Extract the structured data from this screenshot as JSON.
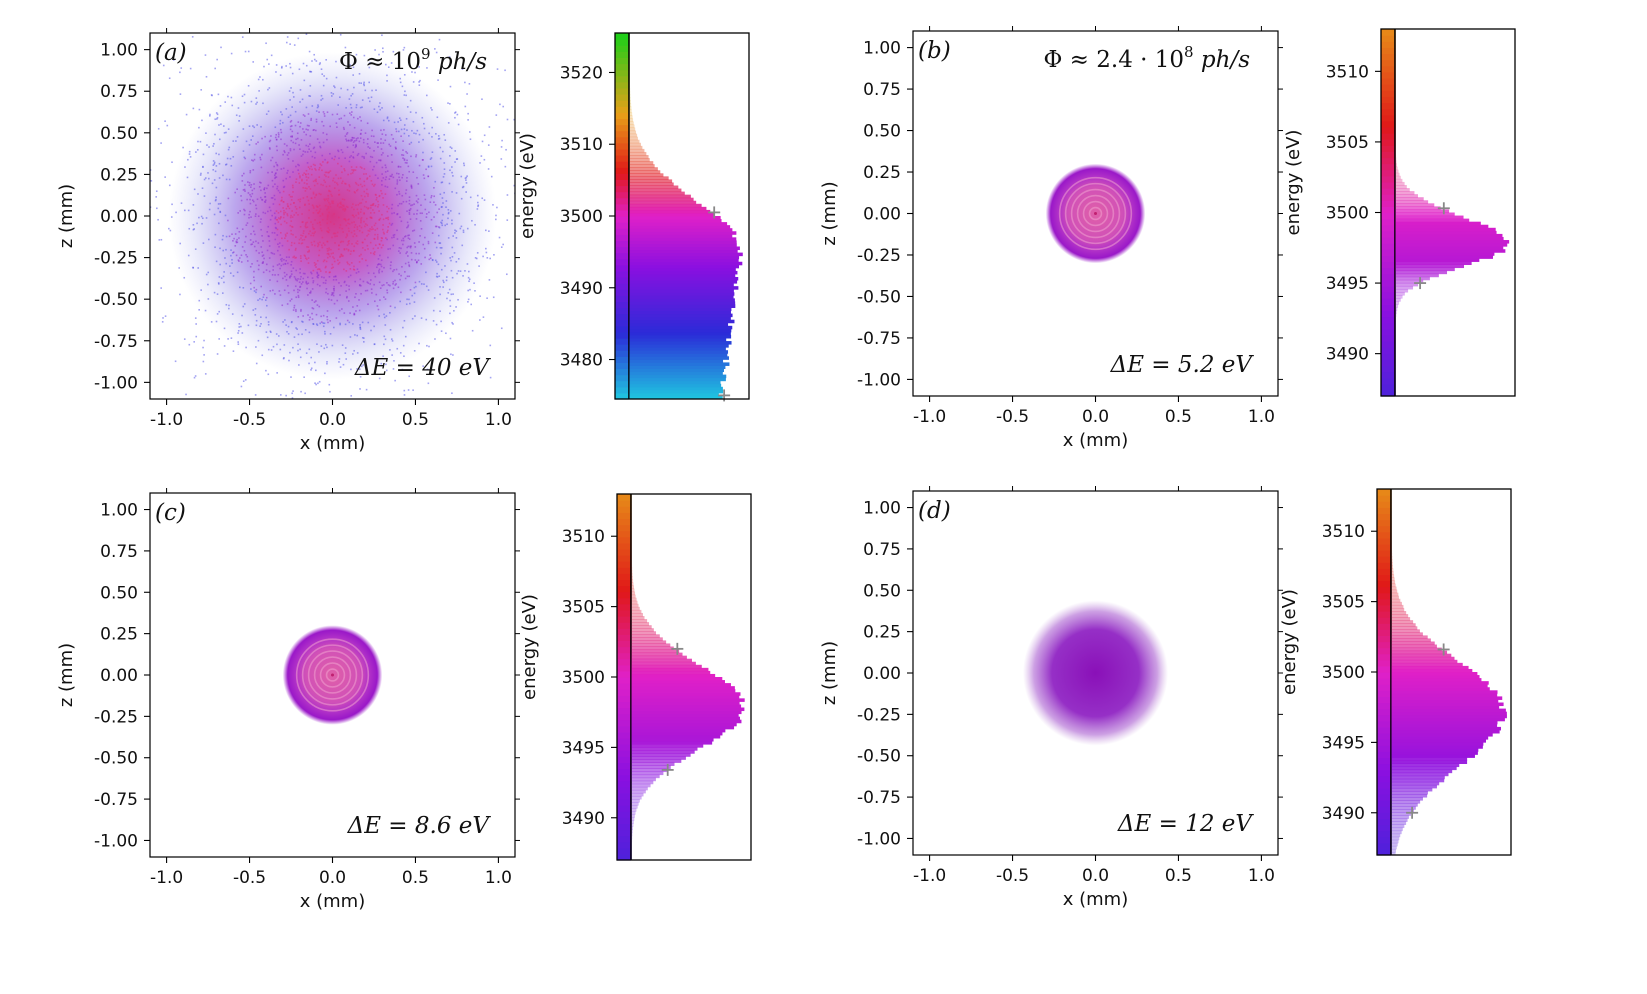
{
  "colors": {
    "cyan": "#1fc8e0",
    "blue": "#2b2bd8",
    "violet": "#8a10e0",
    "magenta": "#e020c8",
    "red": "#e01818",
    "orange": "#e8a018",
    "green": "#18d018",
    "marker": "#888888"
  },
  "chart_data": [
    {
      "panel": "a",
      "type": "heatmap",
      "label": "(a)",
      "flux": {
        "prefix": "Φ ≈ ",
        "mantissa": "",
        "base": "10",
        "exp": "9",
        "unit": "ph/s"
      },
      "delta_e": "ΔE = 40 eV",
      "spot": {
        "style": "diffuse",
        "sigma_mm": 0.38,
        "dots": true
      },
      "spot_ticks": {
        "x": [
          -1.0,
          -0.5,
          0.0,
          0.5,
          1.0
        ],
        "x_labels": [
          "-1.0",
          "-0.5",
          "0.0",
          "0.5",
          "1.0"
        ],
        "z": [
          1.0,
          0.75,
          0.5,
          0.25,
          0.0,
          -0.25,
          -0.5,
          -0.75,
          -1.0
        ],
        "z_labels": [
          "1.00",
          "0.75",
          "0.50",
          "0.25",
          "0.00",
          "-0.25",
          "-0.50",
          "-0.75",
          "-1.00"
        ]
      },
      "xlim": [
        -1.1,
        1.1
      ],
      "ylim": [
        -1.1,
        1.1
      ],
      "xlabel": "x (mm)",
      "ylabel": "z (mm)",
      "histogram": {
        "ylabel": "energy (eV)",
        "ylim": [
          3474.5,
          3525.5
        ],
        "ticks": [
          3480,
          3490,
          3500,
          3510,
          3520
        ],
        "tick_labels": [
          "3480",
          "3490",
          "3500",
          "3510",
          "3520"
        ],
        "colorbar_range": [
          3474.5,
          3525.5
        ],
        "dist": {
          "mu": 3485,
          "sigma_lo": 40,
          "sigma_hi": 7,
          "plateau_hi": 3495
        },
        "markers": [
          3500.5,
          3475
        ]
      }
    },
    {
      "panel": "b",
      "type": "heatmap",
      "label": "(b)",
      "flux": {
        "prefix": "Φ ≈ ",
        "mantissa": "2.4 · ",
        "base": "10",
        "exp": "8",
        "unit": "ph/s"
      },
      "delta_e": "ΔE = 5.2 eV",
      "spot": {
        "style": "rings",
        "radius_mm": 0.3,
        "dots": false
      },
      "spot_ticks": {
        "x": [
          -1.0,
          -0.5,
          0.0,
          0.5,
          1.0
        ],
        "x_labels": [
          "-1.0",
          "-0.5",
          "0.0",
          "0.5",
          "1.0"
        ],
        "z": [
          1.0,
          0.75,
          0.5,
          0.25,
          0.0,
          -0.25,
          -0.5,
          -0.75,
          -1.0
        ],
        "z_labels": [
          "1.00",
          "0.75",
          "0.50",
          "0.25",
          "0.00",
          "-0.25",
          "-0.50",
          "-0.75",
          "-1.00"
        ]
      },
      "xlim": [
        -1.1,
        1.1
      ],
      "ylim": [
        -1.1,
        1.1
      ],
      "xlabel": "x (mm)",
      "ylabel": "z (mm)",
      "histogram": {
        "ylabel": "energy (eV)",
        "ylim": [
          3487,
          3513
        ],
        "ticks": [
          3490,
          3495,
          3500,
          3505,
          3510
        ],
        "tick_labels": [
          "3490",
          "3495",
          "3500",
          "3505",
          "3510"
        ],
        "colorbar_range": [
          3474.5,
          3525.5
        ],
        "dist": {
          "mu": 3497.8,
          "sigma_lo": 1.6,
          "sigma_hi": 1.9
        },
        "markers": [
          3500.3,
          3495.0
        ]
      }
    },
    {
      "panel": "c",
      "type": "heatmap",
      "label": "(c)",
      "flux": null,
      "delta_e": "ΔE = 8.6 eV",
      "spot": {
        "style": "rings",
        "radius_mm": 0.3,
        "dots": false
      },
      "spot_ticks": {
        "x": [
          -1.0,
          -0.5,
          0.0,
          0.5,
          1.0
        ],
        "x_labels": [
          "-1.0",
          "-0.5",
          "0.0",
          "0.5",
          "1.0"
        ],
        "z": [
          1.0,
          0.75,
          0.5,
          0.25,
          0.0,
          -0.25,
          -0.5,
          -0.75,
          -1.0
        ],
        "z_labels": [
          "1.00",
          "0.75",
          "0.50",
          "0.25",
          "0.00",
          "-0.25",
          "-0.50",
          "-0.75",
          "-1.00"
        ]
      },
      "xlim": [
        -1.1,
        1.1
      ],
      "ylim": [
        -1.1,
        1.1
      ],
      "xlabel": "x (mm)",
      "ylabel": "z (mm)",
      "histogram": {
        "ylabel": "energy (eV)",
        "ylim": [
          3487,
          3513
        ],
        "ticks": [
          3490,
          3495,
          3500,
          3505,
          3510
        ],
        "tick_labels": [
          "3490",
          "3495",
          "3500",
          "3505",
          "3510"
        ],
        "colorbar_range": [
          3474.5,
          3525.5
        ],
        "dist": {
          "mu": 3497.8,
          "sigma_lo": 2.9,
          "sigma_hi": 3.1
        },
        "markers": [
          3502.0,
          3493.4
        ]
      }
    },
    {
      "panel": "d",
      "type": "heatmap",
      "label": "(d)",
      "flux": null,
      "delta_e": "ΔE = 12 eV",
      "spot": {
        "style": "blurred",
        "radius_mm": 0.35,
        "dots": false
      },
      "spot_ticks": {
        "x": [
          -1.0,
          -0.5,
          0.0,
          0.5,
          1.0
        ],
        "x_labels": [
          "-1.0",
          "-0.5",
          "0.0",
          "0.5",
          "1.0"
        ],
        "z": [
          1.0,
          0.75,
          0.5,
          0.25,
          0.0,
          -0.25,
          -0.5,
          -0.75,
          -1.0
        ],
        "z_labels": [
          "1.00",
          "0.75",
          "0.50",
          "0.25",
          "0.00",
          "-0.25",
          "-0.50",
          "-0.75",
          "-1.00"
        ]
      },
      "xlim": [
        -1.1,
        1.1
      ],
      "ylim": [
        -1.1,
        1.1
      ],
      "xlabel": "x (mm)",
      "ylabel": "z (mm)",
      "histogram": {
        "ylabel": "energy (eV)",
        "ylim": [
          3487,
          3513
        ],
        "ticks": [
          3490,
          3495,
          3500,
          3505,
          3510
        ],
        "tick_labels": [
          "3490",
          "3495",
          "3500",
          "3505",
          "3510"
        ],
        "colorbar_range": [
          3474.5,
          3525.5
        ],
        "dist": {
          "mu": 3497.2,
          "sigma_lo": 3.9,
          "sigma_hi": 3.5
        },
        "markers": [
          3501.6,
          3490.0
        ]
      }
    }
  ]
}
